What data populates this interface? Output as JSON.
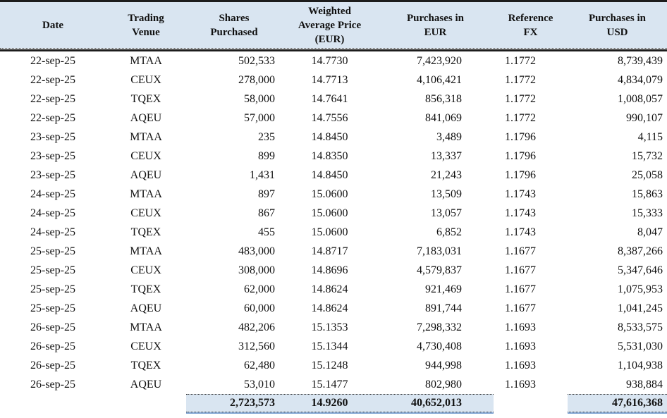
{
  "table": {
    "columns": [
      {
        "id": "date",
        "lines": [
          "Date"
        ]
      },
      {
        "id": "trading_venue",
        "lines": [
          "Trading",
          "Venue"
        ]
      },
      {
        "id": "shares_purchased",
        "lines": [
          "Shares",
          "Purchased"
        ]
      },
      {
        "id": "weighted_average_price_eur",
        "lines": [
          "Weighted",
          "Average Price",
          "(EUR)"
        ]
      },
      {
        "id": "purchases_eur",
        "lines": [
          "Purchases in",
          "EUR"
        ]
      },
      {
        "id": "reference_fx",
        "lines": [
          "Reference",
          "FX"
        ]
      },
      {
        "id": "purchases_usd",
        "lines": [
          "Purchases in",
          "USD"
        ]
      }
    ],
    "rows": [
      [
        "22-sep-25",
        "MTAA",
        "502,533",
        "14.7730",
        "7,423,920",
        "1.1772",
        "8,739,439"
      ],
      [
        "22-sep-25",
        "CEUX",
        "278,000",
        "14.7713",
        "4,106,421",
        "1.1772",
        "4,834,079"
      ],
      [
        "22-sep-25",
        "TQEX",
        "58,000",
        "14.7641",
        "856,318",
        "1.1772",
        "1,008,057"
      ],
      [
        "22-sep-25",
        "AQEU",
        "57,000",
        "14.7556",
        "841,069",
        "1.1772",
        "990,107"
      ],
      [
        "23-sep-25",
        "MTAA",
        "235",
        "14.8450",
        "3,489",
        "1.1796",
        "4,115"
      ],
      [
        "23-sep-25",
        "CEUX",
        "899",
        "14.8350",
        "13,337",
        "1.1796",
        "15,732"
      ],
      [
        "23-sep-25",
        "AQEU",
        "1,431",
        "14.8450",
        "21,243",
        "1.1796",
        "25,058"
      ],
      [
        "24-sep-25",
        "MTAA",
        "897",
        "15.0600",
        "13,509",
        "1.1743",
        "15,863"
      ],
      [
        "24-sep-25",
        "CEUX",
        "867",
        "15.0600",
        "13,057",
        "1.1743",
        "15,333"
      ],
      [
        "24-sep-25",
        "TQEX",
        "455",
        "15.0600",
        "6,852",
        "1.1743",
        "8,047"
      ],
      [
        "25-sep-25",
        "MTAA",
        "483,000",
        "14.8717",
        "7,183,031",
        "1.1677",
        "8,387,266"
      ],
      [
        "25-sep-25",
        "CEUX",
        "308,000",
        "14.8696",
        "4,579,837",
        "1.1677",
        "5,347,646"
      ],
      [
        "25-sep-25",
        "TQEX",
        "62,000",
        "14.8624",
        "921,469",
        "1.1677",
        "1,075,953"
      ],
      [
        "25-sep-25",
        "AQEU",
        "60,000",
        "14.8624",
        "891,744",
        "1.1677",
        "1,041,245"
      ],
      [
        "26-sep-25",
        "MTAA",
        "482,206",
        "15.1353",
        "7,298,332",
        "1.1693",
        "8,533,575"
      ],
      [
        "26-sep-25",
        "CEUX",
        "312,560",
        "15.1344",
        "4,730,408",
        "1.1693",
        "5,531,030"
      ],
      [
        "26-sep-25",
        "TQEX",
        "62,480",
        "15.1248",
        "944,998",
        "1.1693",
        "1,104,938"
      ],
      [
        "26-sep-25",
        "AQEU",
        "53,010",
        "15.1477",
        "802,980",
        "1.1693",
        "938,884"
      ]
    ],
    "totals": {
      "shares": "2,723,573",
      "weighted_average_price": "14.9260",
      "purchases_eur": "40,652,013",
      "purchases_usd": "47,616,368"
    }
  },
  "colors": {
    "header_bg": "#d9e5f1",
    "total_bg": "#d9e5f1",
    "accent_line": "#85a9d6",
    "rule": "#1c1c1c"
  }
}
